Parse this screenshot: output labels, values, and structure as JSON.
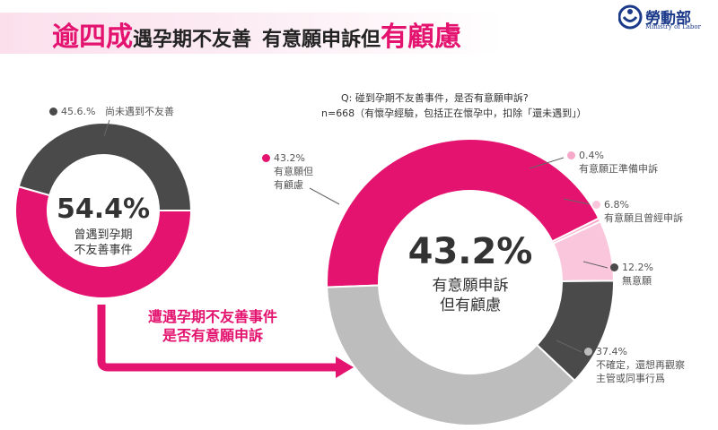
{
  "title": {
    "highlight1": "逾四成",
    "middle": "遇孕期不友善",
    "middle2": "有意願申訴但",
    "highlight2": "有顧慮"
  },
  "logo": {
    "name": "勞動部",
    "sub": "Ministry of Labor"
  },
  "question": {
    "line1": "Q: 碰到孕期不友善事件，是否有意願申訴?",
    "line2": "n=668（有懷孕經驗，包括正在懷孕中，扣除「還未遇到」）"
  },
  "left_chart": {
    "center_pct": "54.4%",
    "center_desc": "曾遇到孕期\n不友善事件",
    "slices": [
      {
        "value": 54.4,
        "color": "#e3136f"
      },
      {
        "value": 45.6,
        "color": "#4a4a4a",
        "label_pct": "45.6.%",
        "label": "尚未遇到不友善"
      }
    ]
  },
  "right_chart": {
    "center_pct": "43.2%",
    "center_desc": "有意願申訴\n但有顧慮"
  },
  "chart_data": [
    {
      "type": "pie",
      "categories": [
        "曾遇到孕期不友善事件",
        "尚未遇到不友善"
      ],
      "values": [
        54.4,
        45.6
      ]
    },
    {
      "type": "pie",
      "categories": [
        "有意願但有顧慮",
        "有意願正準備申訴",
        "有意願且曾經申訴",
        "無意願",
        "不確定，還想再觀察主管或同事行爲"
      ],
      "values": [
        43.2,
        0.4,
        6.8,
        12.2,
        37.4
      ],
      "colors": [
        "#e3136f",
        "#f7a8c8",
        "#f9c6dc",
        "#4a4a4a",
        "#bdbdbd"
      ]
    }
  ],
  "right_labels": [
    {
      "pct": "43.2%",
      "text": "有意願但\n有顧慮",
      "color": "#e3136f"
    },
    {
      "pct": "0.4%",
      "text": "有意願正準備申訴",
      "color": "#f7a8c8"
    },
    {
      "pct": "6.8%",
      "text": "有意願且曾經申訴",
      "color": "#f9c6dc"
    },
    {
      "pct": "12.2%",
      "text": "無意願",
      "color": "#4a4a4a"
    },
    {
      "pct": "37.4%",
      "text": "不確定，還想再觀察\n主管或同事行爲",
      "color": "#bdbdbd"
    }
  ],
  "arrow_text": "遭遇孕期不友善事件\n是否有意願申訴"
}
